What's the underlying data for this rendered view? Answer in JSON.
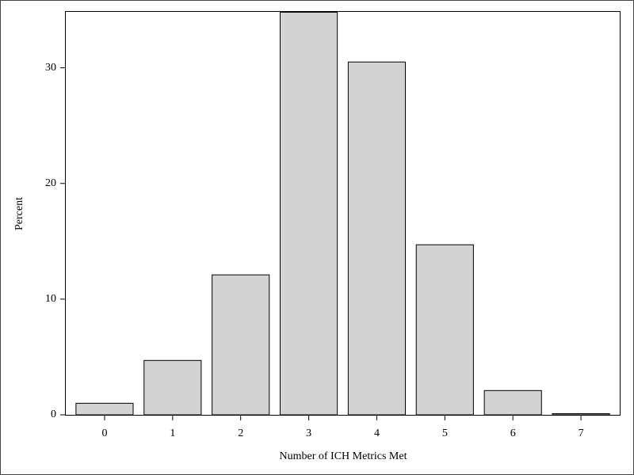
{
  "chart_data": {
    "type": "bar",
    "x_label": "Number of ICH Metrics Met",
    "y_label": "Percent",
    "categories": [
      "0",
      "1",
      "2",
      "3",
      "4",
      "5",
      "6",
      "7"
    ],
    "values": [
      1.0,
      4.7,
      12.1,
      34.8,
      30.5,
      14.7,
      2.1,
      0.1
    ],
    "color": "#d3d3d3",
    "ylim": [
      0,
      34.9
    ],
    "yticks": [
      0,
      10,
      20,
      30
    ]
  }
}
